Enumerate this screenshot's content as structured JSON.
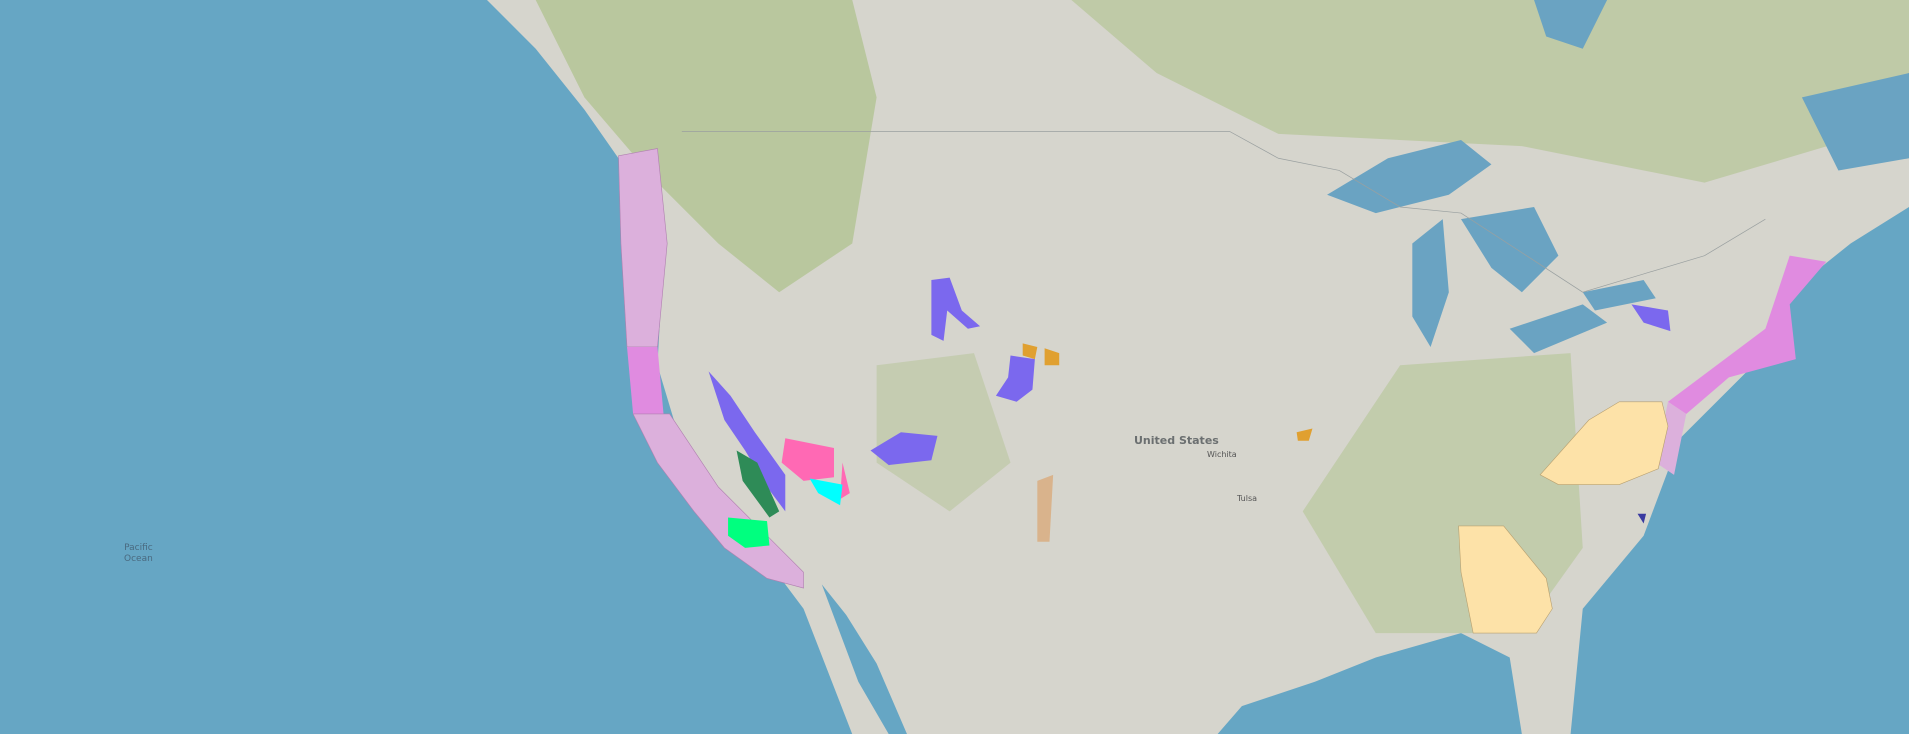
{
  "map": {
    "ocean_label": "Pacific\nOcean",
    "country_label": "United States",
    "city_labels": [
      "Wichita",
      "Tulsa"
    ],
    "colors": {
      "ocean": "#66a6c4",
      "land": "#d6d5cd",
      "vegetation": "#b9c79e",
      "lakes": "#6aa3c2",
      "coastal_zone": "#dcb0dc",
      "coastal_zone_strong": "#e08be0",
      "purple": "#7b68ee",
      "hot_pink": "#ff69b4",
      "dark_green": "#2e8b57",
      "spring_green": "#00ff7f",
      "cyan": "#00ffff",
      "tan": "#d9b38c",
      "orange": "#e0a030",
      "wheat": "#fde2a8"
    }
  }
}
